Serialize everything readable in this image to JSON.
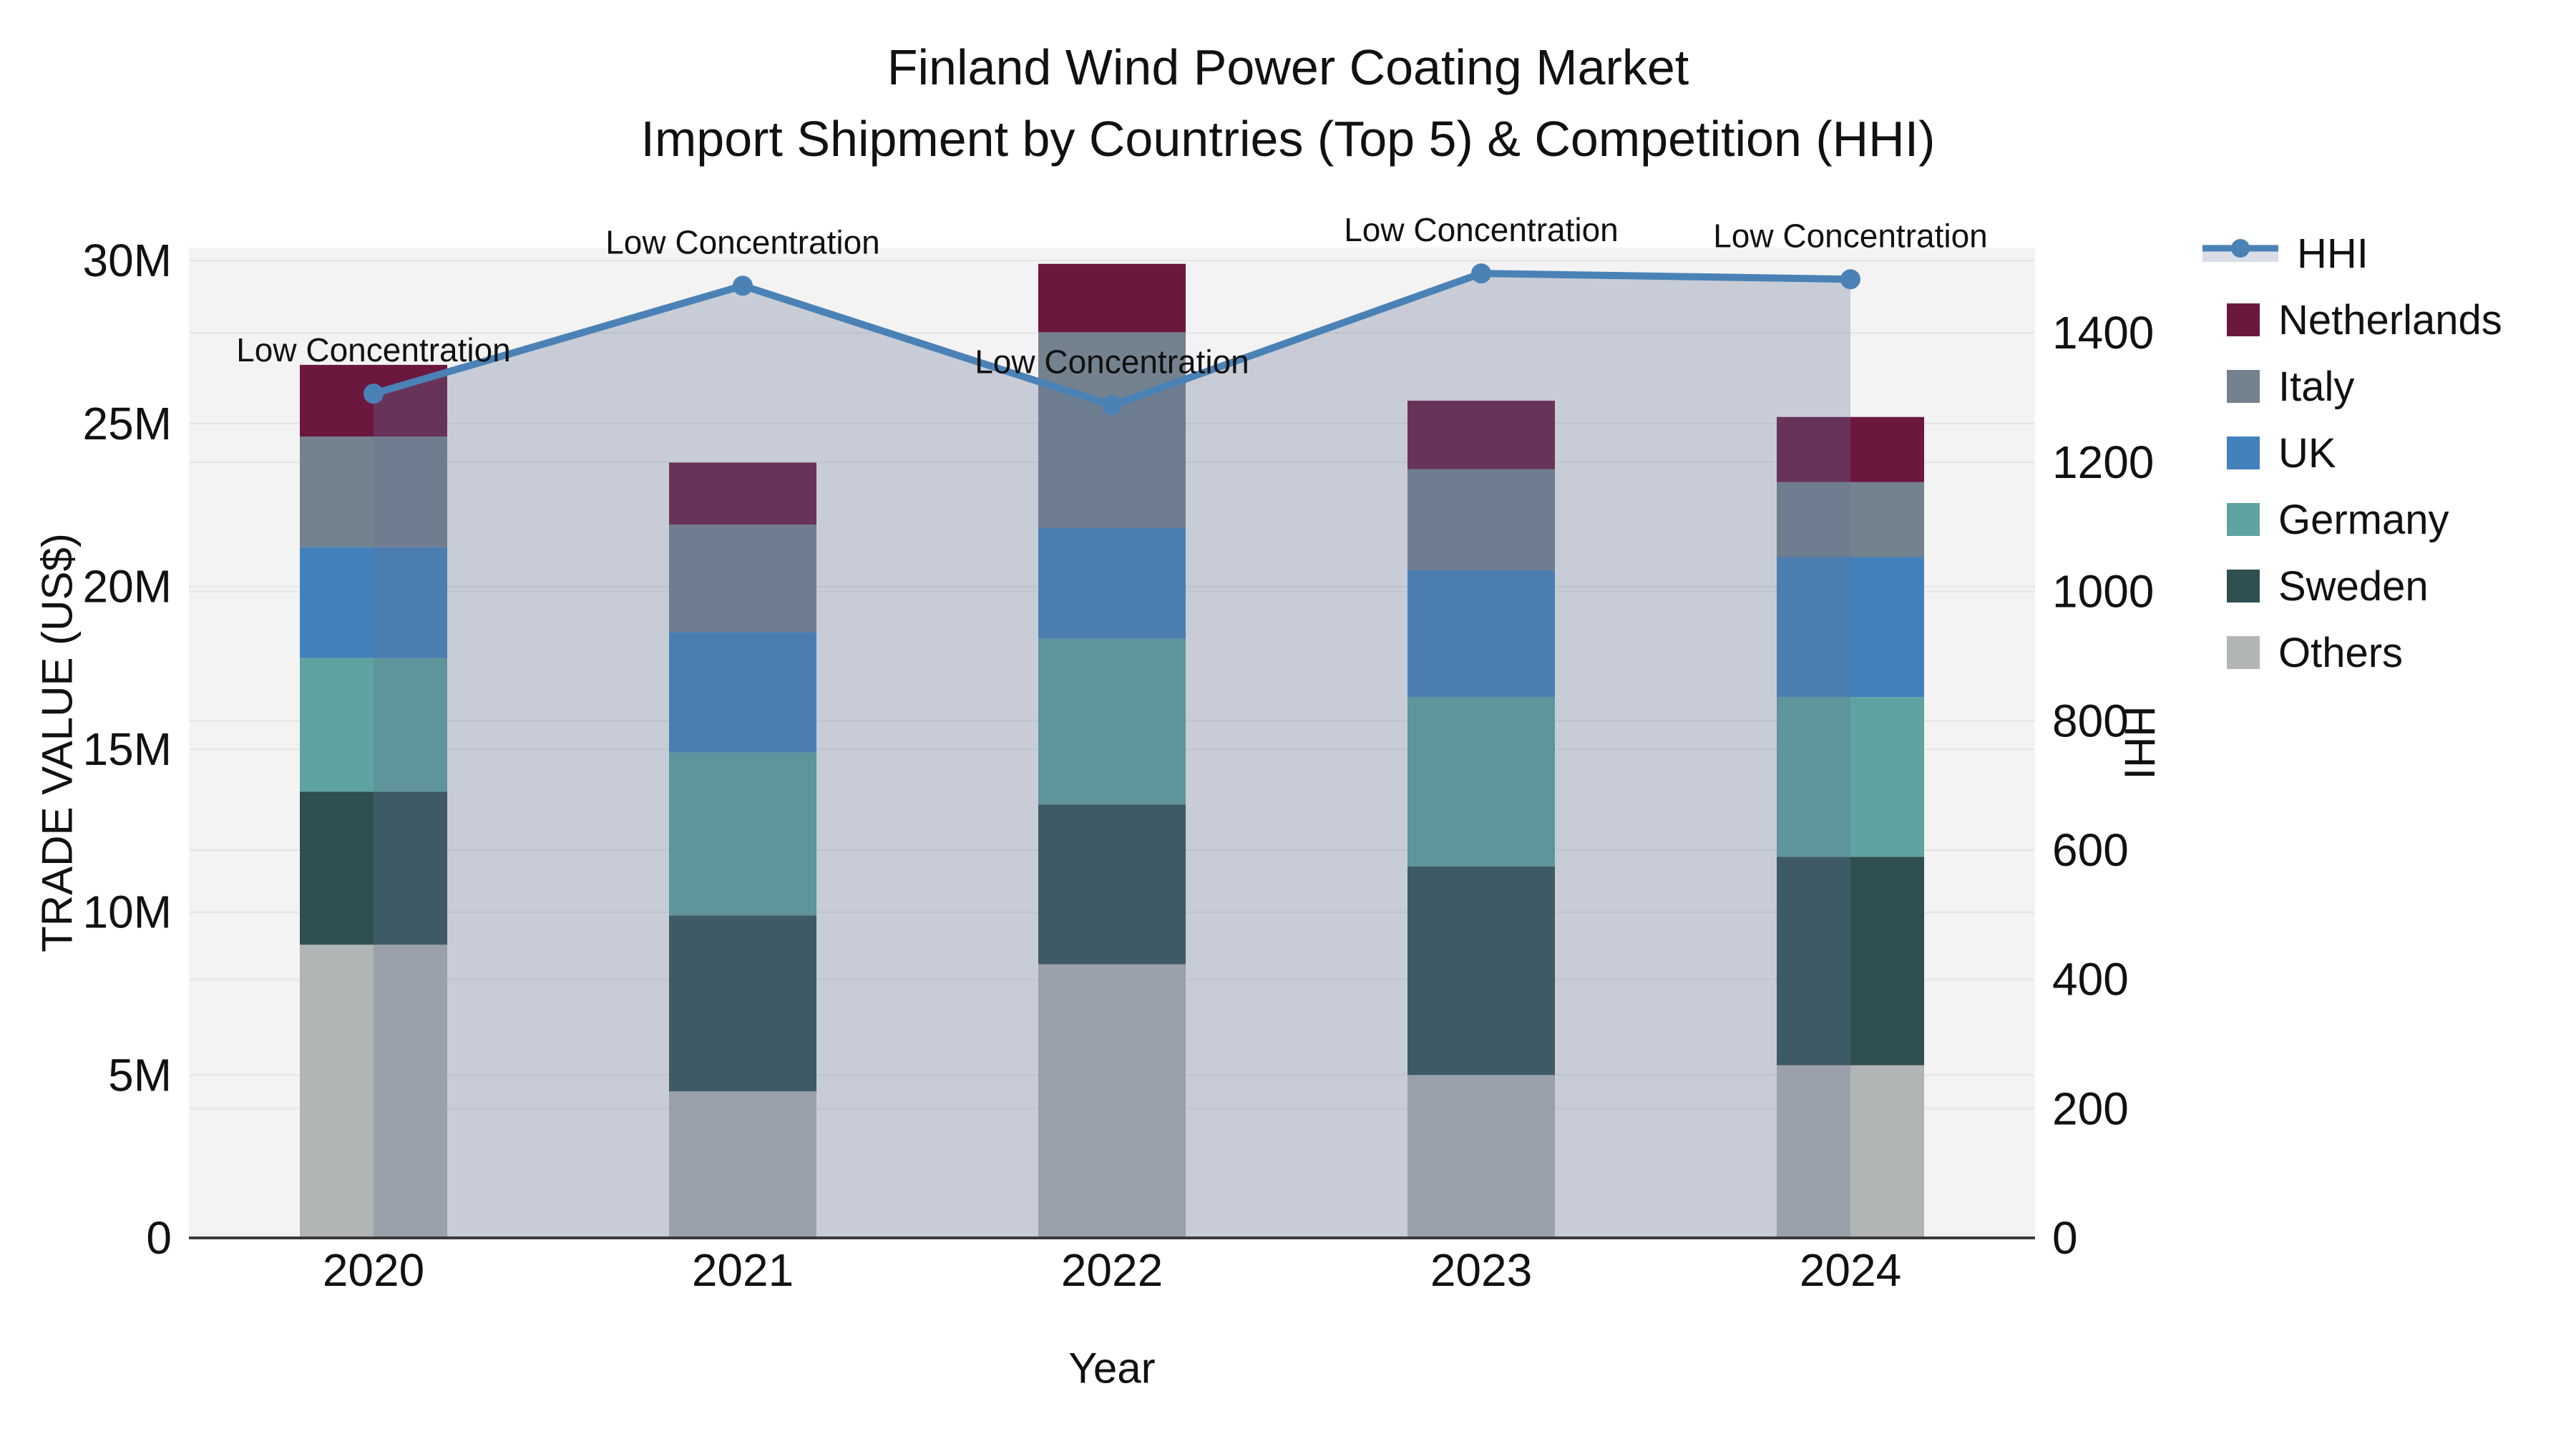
{
  "title": {
    "line1": "Finland Wind Power Coating Market",
    "line2": "Import Shipment by Countries (Top 5) & Competition (HHI)"
  },
  "legend": {
    "items": [
      {
        "key": "hhi",
        "label": "HHI",
        "marker": "line"
      },
      {
        "key": "netherlands",
        "label": "Netherlands",
        "marker": "square"
      },
      {
        "key": "italy",
        "label": "Italy",
        "marker": "square"
      },
      {
        "key": "uk",
        "label": "UK",
        "marker": "square"
      },
      {
        "key": "germany",
        "label": "Germany",
        "marker": "square"
      },
      {
        "key": "sweden",
        "label": "Sweden",
        "marker": "square"
      },
      {
        "key": "others",
        "label": "Others",
        "marker": "square"
      }
    ]
  },
  "colors": {
    "netherlands": "#6B173E",
    "italy": "#74828F",
    "uk": "#4381BC",
    "germany": "#5EA3A0",
    "sweden": "#2F4F50",
    "others": "#B2B5B5",
    "hhi_line": "#4A82B6",
    "hhi_fill": "rgba(100,115,150,0.30)",
    "hhi_fill_on_white": "#D9DDE6",
    "plot_bg": "#F3F3F3",
    "grid": "#E4E4E4",
    "axis_line": "#3A3A3A",
    "text": "#111111"
  },
  "chart_data": {
    "type": "bar",
    "subtype": "stacked-bar-with-line",
    "x": [
      "2020",
      "2021",
      "2022",
      "2023",
      "2024"
    ],
    "x_label": "Year",
    "bar_series": [
      {
        "name": "Others",
        "color_key": "others",
        "values": [
          9.0,
          4.5,
          8.4,
          5.0,
          5.3
        ]
      },
      {
        "name": "Sweden",
        "color_key": "sweden",
        "values": [
          4.7,
          5.4,
          4.9,
          6.4,
          6.4
        ]
      },
      {
        "name": "Germany",
        "color_key": "germany",
        "values": [
          4.1,
          5.0,
          5.1,
          5.2,
          4.9
        ]
      },
      {
        "name": "UK",
        "color_key": "uk",
        "values": [
          3.4,
          3.7,
          3.4,
          3.9,
          4.3
        ]
      },
      {
        "name": "Italy",
        "color_key": "italy",
        "values": [
          3.4,
          3.3,
          6.0,
          3.1,
          2.3
        ]
      },
      {
        "name": "Netherlands",
        "color_key": "netherlands",
        "values": [
          2.2,
          1.9,
          2.1,
          2.1,
          2.0
        ]
      }
    ],
    "line_series": {
      "name": "HHI",
      "values": [
        1306,
        1473,
        1288,
        1492,
        1483
      ],
      "annotation_label": "Low Concentration",
      "annotations": [
        "Low Concentration",
        "Low Concentration",
        "Low Concentration",
        "Low Concentration",
        "Low Concentration"
      ]
    },
    "y_left": {
      "label": "TRADE VALUE (US$)",
      "tick_labels": [
        "0",
        "5M",
        "10M",
        "15M",
        "20M",
        "25M",
        "30M"
      ],
      "tick_values": [
        0,
        5,
        10,
        15,
        20,
        25,
        30
      ],
      "range": [
        0,
        30.4
      ],
      "grid": true
    },
    "y_right": {
      "label": "HHI",
      "tick_labels": [
        "0",
        "200",
        "400",
        "600",
        "800",
        "1000",
        "1200",
        "1400"
      ],
      "tick_values": [
        0,
        200,
        400,
        600,
        800,
        1000,
        1200,
        1400
      ],
      "range": [
        0,
        1532
      ],
      "grid": true
    },
    "legend_position": "right"
  }
}
